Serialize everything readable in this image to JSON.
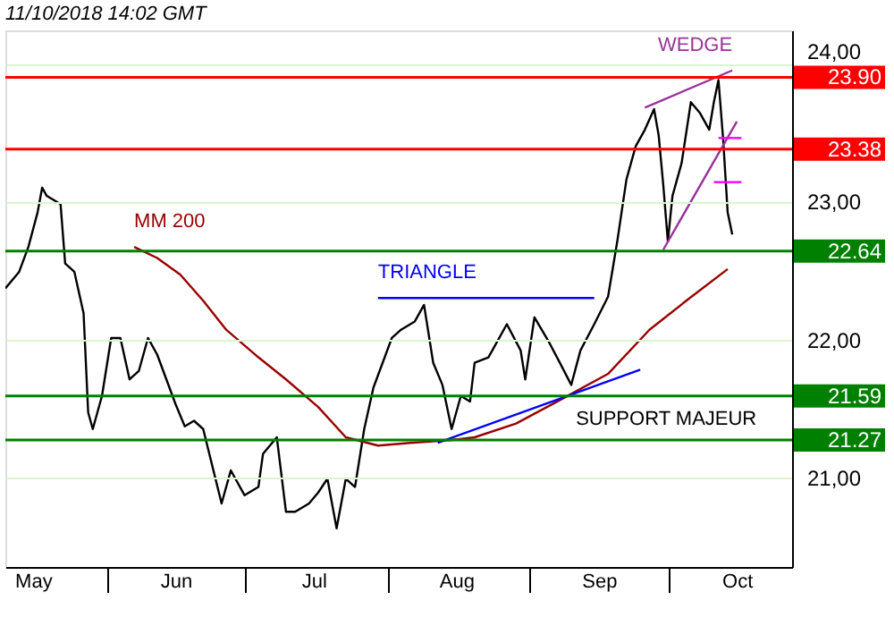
{
  "chart_data": {
    "type": "line",
    "title": "11/10/2018  14:02 GMT",
    "xlim": [
      "2018-05-10",
      "2018-10-28"
    ],
    "xticks": [
      {
        "value": "2018-05-16",
        "label": "May"
      },
      {
        "value": "2018-06-01",
        "label": null
      },
      {
        "value": "2018-06-16",
        "label": "Jun"
      },
      {
        "value": "2018-07-01",
        "label": null
      },
      {
        "value": "2018-07-16",
        "label": "Jul"
      },
      {
        "value": "2018-08-01",
        "label": null
      },
      {
        "value": "2018-08-16",
        "label": "Aug"
      },
      {
        "value": "2018-09-01",
        "label": null
      },
      {
        "value": "2018-09-16",
        "label": "Sep"
      },
      {
        "value": "2018-10-01",
        "label": null
      },
      {
        "value": "2018-10-16",
        "label": "Oct"
      }
    ],
    "ylim": [
      20.35,
      24.24
    ],
    "yticks": [
      {
        "value": 21,
        "label": "21,00"
      },
      {
        "value": 22,
        "label": "22,00"
      },
      {
        "value": 23,
        "label": "23,00"
      },
      {
        "value": 24,
        "label": "24,00"
      }
    ],
    "grid": "y",
    "legend": false,
    "marker": "none",
    "line_style": "solid",
    "series": [
      {
        "color": "#000000",
        "x": [
          "2018-05-10",
          "2018-05-13",
          "2018-05-15",
          "2018-05-17",
          "2018-05-18",
          "2018-05-19",
          "2018-05-22",
          "2018-05-23",
          "2018-05-25",
          "2018-05-27",
          "2018-05-28",
          "2018-05-29",
          "2018-05-31",
          "2018-06-02",
          "2018-06-04",
          "2018-06-06",
          "2018-06-08",
          "2018-06-10",
          "2018-06-12",
          "2018-06-14",
          "2018-06-16",
          "2018-06-18",
          "2018-06-20",
          "2018-06-22",
          "2018-06-24",
          "2018-06-26",
          "2018-06-28",
          "2018-07-01",
          "2018-07-04",
          "2018-07-05",
          "2018-07-08",
          "2018-07-10",
          "2018-07-12",
          "2018-07-15",
          "2018-07-17",
          "2018-07-19",
          "2018-07-21",
          "2018-07-23",
          "2018-07-25",
          "2018-07-27",
          "2018-07-29",
          "2018-08-02",
          "2018-08-04",
          "2018-08-07",
          "2018-08-09",
          "2018-08-11",
          "2018-08-13",
          "2018-08-15",
          "2018-08-17",
          "2018-08-19",
          "2018-08-20",
          "2018-08-23",
          "2018-08-27",
          "2018-08-30",
          "2018-08-31",
          "2018-09-02",
          "2018-09-05",
          "2018-09-08",
          "2018-09-10",
          "2018-09-12",
          "2018-09-15",
          "2018-09-18",
          "2018-09-20",
          "2018-09-22",
          "2018-09-24",
          "2018-09-26",
          "2018-09-28",
          "2018-09-29",
          "2018-09-30",
          "2018-10-01",
          "2018-10-02",
          "2018-10-04",
          "2018-10-06",
          "2018-10-08",
          "2018-10-10",
          "2018-10-11",
          "2018-10-12",
          "2018-10-13",
          "2018-10-14",
          "2018-10-15"
        ],
        "values": [
          22.37,
          22.49,
          22.67,
          22.92,
          23.1,
          23.04,
          22.98,
          22.55,
          22.49,
          22.19,
          21.47,
          21.35,
          21.59,
          22.01,
          22.01,
          21.71,
          21.77,
          22.01,
          21.89,
          21.71,
          21.53,
          21.37,
          21.41,
          21.35,
          21.08,
          20.81,
          21.05,
          20.87,
          20.93,
          21.17,
          21.29,
          20.75,
          20.75,
          20.81,
          20.89,
          20.99,
          20.63,
          20.99,
          20.93,
          21.35,
          21.65,
          22.01,
          22.07,
          22.13,
          22.25,
          21.83,
          21.67,
          21.35,
          21.59,
          21.55,
          21.83,
          21.87,
          22.11,
          21.92,
          21.71,
          22.16,
          21.99,
          21.8,
          21.67,
          21.92,
          22.11,
          22.31,
          22.71,
          23.16,
          23.4,
          23.52,
          23.67,
          23.48,
          23.12,
          22.71,
          23.04,
          23.28,
          23.72,
          23.64,
          23.52,
          23.72,
          23.88,
          23.46,
          22.92,
          22.76
        ]
      },
      {
        "name": "MM 200",
        "color": "#990000",
        "x": [
          "2018-06-07",
          "2018-06-12",
          "2018-06-17",
          "2018-06-22",
          "2018-06-27",
          "2018-07-04",
          "2018-07-10",
          "2018-07-17",
          "2018-07-23",
          "2018-07-30",
          "2018-08-06",
          "2018-08-15",
          "2018-08-20",
          "2018-08-29",
          "2018-09-07",
          "2018-09-18",
          "2018-09-27",
          "2018-10-05",
          "2018-10-14"
        ],
        "values": [
          22.67,
          22.59,
          22.47,
          22.28,
          22.07,
          21.87,
          21.71,
          21.51,
          21.29,
          21.23,
          21.25,
          21.27,
          21.29,
          21.39,
          21.55,
          21.75,
          22.07,
          22.28,
          22.51
        ]
      },
      {
        "name": "TRIANGLE",
        "color": "#0000ff",
        "x": [
          "2018-07-30",
          "2018-09-15"
        ],
        "values": [
          22.3,
          22.3
        ]
      },
      {
        "color": "#0000ff",
        "x": [
          "2018-08-12",
          "2018-09-25"
        ],
        "values": [
          21.25,
          21.78
        ]
      },
      {
        "name": "WEDGE",
        "color": "#993399",
        "x": [
          "2018-09-26",
          "2018-10-15"
        ],
        "values": [
          23.68,
          23.95
        ]
      },
      {
        "color": "#993399",
        "x": [
          "2018-09-30",
          "2018-10-16"
        ],
        "values": [
          22.65,
          23.58
        ]
      },
      {
        "color": "#ff00ff",
        "x": [
          "2018-10-12",
          "2018-10-17"
        ],
        "values": [
          23.46,
          23.46
        ]
      },
      {
        "color": "#ff00ff",
        "x": [
          "2018-10-11",
          "2018-10-17"
        ],
        "values": [
          23.14,
          23.14
        ]
      }
    ],
    "ref_lines": [
      {
        "axis": "y",
        "value": 23.9,
        "label": "23.90",
        "color": "#ff0000"
      },
      {
        "axis": "y",
        "value": 23.38,
        "label": "23.38",
        "color": "#ff0000"
      },
      {
        "axis": "y",
        "value": 22.64,
        "label": "22.64",
        "color": "#008000"
      },
      {
        "axis": "y",
        "value": 21.59,
        "label": "21.59",
        "color": "#008000"
      },
      {
        "axis": "y",
        "value": 21.27,
        "label": "21.27",
        "color": "#008000"
      }
    ],
    "annotations": [
      "SUPPORT MAJEUR"
    ]
  }
}
